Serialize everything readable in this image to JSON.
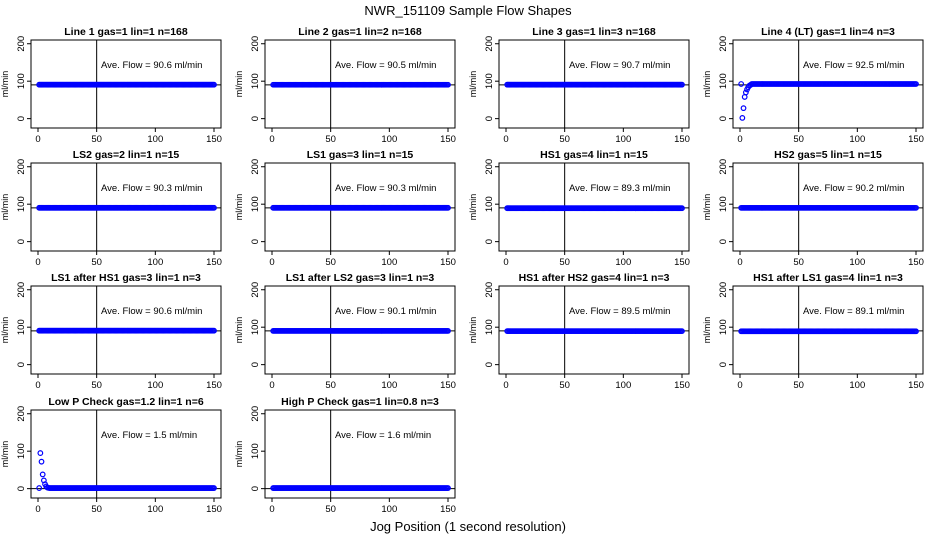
{
  "figure": {
    "title": "NWR_151109  Sample Flow Shapes",
    "xlabel": "Jog Position (1 second resolution)"
  },
  "chart_data": [
    {
      "type": "scatter",
      "title": "Line 1 gas=1 lin=1 n=168",
      "ylabel": "ml/min",
      "xlim": [
        0,
        150
      ],
      "ylim": [
        -25,
        210
      ],
      "xticks": [
        0,
        50,
        100,
        150
      ],
      "yticks": [
        0,
        100,
        200
      ],
      "ytick_labels": [
        "0",
        "100",
        "200"
      ],
      "annotation": "Ave. Flow = 90.6  ml/min",
      "hline": 90,
      "vline": 50,
      "shape": "flat",
      "plateau": 90.6
    },
    {
      "type": "scatter",
      "title": "Line 2 gas=1 lin=2 n=168",
      "ylabel": "ml/min",
      "xlim": [
        0,
        150
      ],
      "ylim": [
        -25,
        210
      ],
      "xticks": [
        0,
        50,
        100,
        150
      ],
      "yticks": [
        0,
        100,
        200
      ],
      "ytick_labels": [
        "0",
        "100",
        "200"
      ],
      "annotation": "Ave. Flow = 90.5  ml/min",
      "hline": 90,
      "vline": 50,
      "shape": "flat",
      "plateau": 90.5
    },
    {
      "type": "scatter",
      "title": "Line 3 gas=1 lin=3 n=168",
      "ylabel": "ml/min",
      "xlim": [
        0,
        150
      ],
      "ylim": [
        -25,
        210
      ],
      "xticks": [
        0,
        50,
        100,
        150
      ],
      "yticks": [
        0,
        100,
        200
      ],
      "ytick_labels": [
        "0",
        "100",
        "200"
      ],
      "annotation": "Ave. Flow = 90.7  ml/min",
      "hline": 90,
      "vline": 50,
      "shape": "flat",
      "plateau": 90.7
    },
    {
      "type": "scatter",
      "title": "Line 4 (LT) gas=1 lin=4 n=3",
      "ylabel": "ml/min",
      "xlim": [
        0,
        150
      ],
      "ylim": [
        -25,
        210
      ],
      "xticks": [
        0,
        50,
        100,
        150
      ],
      "yticks": [
        0,
        100,
        200
      ],
      "ytick_labels": [
        "0",
        "100",
        "200"
      ],
      "annotation": "Ave. Flow = 92.5  ml/min",
      "hline": 90,
      "vline": 50,
      "shape": "rise",
      "plateau": 92.5,
      "initial": [
        [
          2,
          2
        ],
        [
          3,
          28
        ],
        [
          4,
          58
        ],
        [
          5,
          70
        ],
        [
          6,
          78
        ],
        [
          7,
          84
        ],
        [
          8,
          88
        ],
        [
          9,
          90
        ]
      ]
    },
    {
      "type": "scatter",
      "title": "LS2 gas=2 lin=1 n=15",
      "ylabel": "ml/min",
      "xlim": [
        0,
        150
      ],
      "ylim": [
        -25,
        210
      ],
      "xticks": [
        0,
        50,
        100,
        150
      ],
      "yticks": [
        0,
        100,
        200
      ],
      "ytick_labels": [
        "0",
        "100",
        "200"
      ],
      "annotation": "Ave. Flow = 90.3  ml/min",
      "hline": 90,
      "vline": 50,
      "shape": "flat",
      "plateau": 90.3
    },
    {
      "type": "scatter",
      "title": "LS1 gas=3 lin=1 n=15",
      "ylabel": "ml/min",
      "xlim": [
        0,
        150
      ],
      "ylim": [
        -25,
        210
      ],
      "xticks": [
        0,
        50,
        100,
        150
      ],
      "yticks": [
        0,
        100,
        200
      ],
      "ytick_labels": [
        "0",
        "100",
        "200"
      ],
      "annotation": "Ave. Flow = 90.3  ml/min",
      "hline": 90,
      "vline": 50,
      "shape": "flat",
      "plateau": 90.3
    },
    {
      "type": "scatter",
      "title": "HS1 gas=4 lin=1 n=15",
      "ylabel": "ml/min",
      "xlim": [
        0,
        150
      ],
      "ylim": [
        -25,
        210
      ],
      "xticks": [
        0,
        50,
        100,
        150
      ],
      "yticks": [
        0,
        100,
        200
      ],
      "ytick_labels": [
        "0",
        "100",
        "200"
      ],
      "annotation": "Ave. Flow = 89.3  ml/min",
      "hline": 90,
      "vline": 50,
      "shape": "flat",
      "plateau": 89.3
    },
    {
      "type": "scatter",
      "title": "HS2 gas=5 lin=1 n=15",
      "ylabel": "ml/min",
      "xlim": [
        0,
        150
      ],
      "ylim": [
        -25,
        210
      ],
      "xticks": [
        0,
        50,
        100,
        150
      ],
      "yticks": [
        0,
        100,
        200
      ],
      "ytick_labels": [
        "0",
        "100",
        "200"
      ],
      "annotation": "Ave. Flow = 90.2  ml/min",
      "hline": 90,
      "vline": 50,
      "shape": "flat",
      "plateau": 90.2
    },
    {
      "type": "scatter",
      "title": "LS1 after HS1 gas=3 lin=1 n=3",
      "ylabel": "ml/min",
      "xlim": [
        0,
        150
      ],
      "ylim": [
        -25,
        210
      ],
      "xticks": [
        0,
        50,
        100,
        150
      ],
      "yticks": [
        0,
        100,
        200
      ],
      "ytick_labels": [
        "0",
        "100",
        "200"
      ],
      "annotation": "Ave. Flow = 90.6  ml/min",
      "hline": 90,
      "vline": 50,
      "shape": "flat",
      "plateau": 90.6
    },
    {
      "type": "scatter",
      "title": "LS1 after LS2 gas=3 lin=1 n=3",
      "ylabel": "ml/min",
      "xlim": [
        0,
        150
      ],
      "ylim": [
        -25,
        210
      ],
      "xticks": [
        0,
        50,
        100,
        150
      ],
      "yticks": [
        0,
        100,
        200
      ],
      "ytick_labels": [
        "0",
        "100",
        "200"
      ],
      "annotation": "Ave. Flow = 90.1  ml/min",
      "hline": 90,
      "vline": 50,
      "shape": "flat",
      "plateau": 90.1
    },
    {
      "type": "scatter",
      "title": "HS1 after HS2 gas=4 lin=1 n=3",
      "ylabel": "ml/min",
      "xlim": [
        0,
        150
      ],
      "ylim": [
        -25,
        210
      ],
      "xticks": [
        0,
        50,
        100,
        150
      ],
      "yticks": [
        0,
        100,
        200
      ],
      "ytick_labels": [
        "0",
        "100",
        "200"
      ],
      "annotation": "Ave. Flow = 89.5  ml/min",
      "hline": 90,
      "vline": 50,
      "shape": "flat",
      "plateau": 89.5
    },
    {
      "type": "scatter",
      "title": "HS1 after LS1 gas=4 lin=1 n=3",
      "ylabel": "ml/min",
      "xlim": [
        0,
        150
      ],
      "ylim": [
        -25,
        210
      ],
      "xticks": [
        0,
        50,
        100,
        150
      ],
      "yticks": [
        0,
        100,
        200
      ],
      "ytick_labels": [
        "0",
        "100",
        "200"
      ],
      "annotation": "Ave. Flow = 89.1  ml/min",
      "hline": 90,
      "vline": 50,
      "shape": "flat",
      "plateau": 89.1
    },
    {
      "type": "scatter",
      "title": "Low P Check gas=1.2 lin=1 n=6",
      "ylabel": "ml/min",
      "xlim": [
        0,
        150
      ],
      "ylim": [
        -25,
        210
      ],
      "xticks": [
        0,
        50,
        100,
        150
      ],
      "yticks": [
        0,
        100,
        200
      ],
      "ytick_labels": [
        "0",
        "100",
        "200"
      ],
      "annotation": "Ave. Flow = 1.5  ml/min",
      "hline": 0,
      "vline": 50,
      "shape": "decay",
      "plateau": 1.5,
      "initial": [
        [
          2,
          95
        ],
        [
          3,
          72
        ],
        [
          4,
          38
        ],
        [
          5,
          22
        ],
        [
          6,
          12
        ],
        [
          7,
          6
        ],
        [
          8,
          3
        ],
        [
          9,
          2
        ]
      ]
    },
    {
      "type": "scatter",
      "title": "High P Check gas=1 lin=0.8 n=3",
      "ylabel": "ml/min",
      "xlim": [
        0,
        150
      ],
      "ylim": [
        -25,
        210
      ],
      "xticks": [
        0,
        50,
        100,
        150
      ],
      "yticks": [
        0,
        100,
        200
      ],
      "ytick_labels": [
        "0",
        "100",
        "200"
      ],
      "annotation": "Ave. Flow = 1.6  ml/min",
      "hline": 0,
      "vline": 50,
      "shape": "flat",
      "plateau": 1.6
    }
  ],
  "colors": {
    "points": "#0000ff",
    "axes": "#000000",
    "background": "#ffffff"
  }
}
